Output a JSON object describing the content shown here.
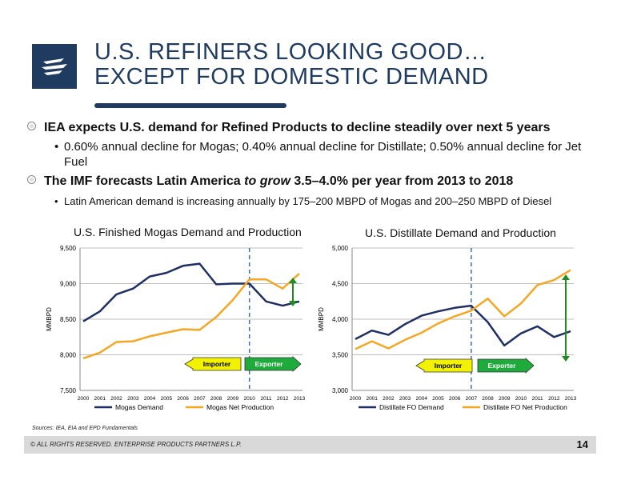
{
  "title": {
    "line1": "U.S. REFINERS LOOKING GOOD…",
    "line2": "EXCEPT FOR DOMESTIC DEMAND"
  },
  "bullets": {
    "b1": "IEA expects U.S. demand for Refined Products to decline steadily over next 5 years",
    "s1": "0.60% annual decline for Mogas; 0.40% annual decline for Distillate;  0.50% annual decline for Jet Fuel",
    "b2_pre": "The IMF forecasts Latin America ",
    "b2_em": "to grow",
    "b2_post": " 3.5–4.0% per year from 2013 to 2018",
    "s2": "Latin American demand is increasing annually by 175–200 MBPD of Mogas and 200–250 MBPD of Diesel"
  },
  "arrows": {
    "importer": "Importer",
    "exporter": "Exporter"
  },
  "colors": {
    "demand": "#1f2f63",
    "production": "#f5a623",
    "accent": "#1f3b5f",
    "arrow_green": "#1e8c1e",
    "importer_fill": "#f2f200",
    "exporter_fill": "#1faa3c"
  },
  "sources": "Sources:  IEA, EIA and EPD Fundamentals",
  "footer": {
    "copyright": "© ALL RIGHTS RESERVED. ENTERPRISE PRODUCTS PARTNERS L.P.",
    "page": "14"
  },
  "chart_data": [
    {
      "type": "line",
      "title": "U.S. Finished Mogas Demand and Production",
      "ylabel": "MMBPD",
      "xlabel": "",
      "ylim": [
        7500,
        9500
      ],
      "yticks": [
        7500,
        8000,
        8500,
        9000,
        9500
      ],
      "ytick_labels": [
        "7,500",
        "8,000",
        "8,500",
        "9,000",
        "9,500"
      ],
      "x": [
        "2000",
        "2001",
        "2002",
        "2003",
        "2004",
        "2005",
        "2006",
        "2007",
        "2008",
        "2009",
        "2010",
        "2011",
        "2012",
        "2013"
      ],
      "divider_x": "2010",
      "grid": true,
      "legend": "bottom",
      "series": [
        {
          "name": "Mogas Demand",
          "values": [
            8470,
            8610,
            8850,
            8930,
            9100,
            9150,
            9250,
            9280,
            8990,
            9000,
            9000,
            8750,
            8690,
            8750
          ]
        },
        {
          "name": "Mogas Net Production",
          "values": [
            7950,
            8030,
            8180,
            8190,
            8260,
            8310,
            8360,
            8350,
            8530,
            8770,
            9060,
            9060,
            8930,
            9140
          ]
        }
      ]
    },
    {
      "type": "line",
      "title": "U.S. Distillate Demand and Production",
      "ylabel": "MMBPD",
      "xlabel": "",
      "ylim": [
        3000,
        5000
      ],
      "yticks": [
        3000,
        3500,
        4000,
        4500,
        5000
      ],
      "ytick_labels": [
        "3,000",
        "3,500",
        "4,000",
        "4,500",
        "5,000"
      ],
      "x": [
        "2000",
        "2001",
        "2002",
        "2003",
        "2004",
        "2005",
        "2006",
        "2007",
        "2008",
        "2009",
        "2010",
        "2011",
        "2012",
        "2013"
      ],
      "divider_x": "2007",
      "grid": true,
      "legend": "bottom",
      "series": [
        {
          "name": "Distillate FO Demand",
          "values": [
            3720,
            3840,
            3780,
            3930,
            4050,
            4110,
            4160,
            4190,
            3960,
            3630,
            3800,
            3900,
            3750,
            3830
          ]
        },
        {
          "name": "Distillate FO Net Production",
          "values": [
            3580,
            3690,
            3590,
            3710,
            3810,
            3940,
            4040,
            4120,
            4290,
            4040,
            4220,
            4480,
            4550,
            4690
          ]
        }
      ]
    }
  ]
}
